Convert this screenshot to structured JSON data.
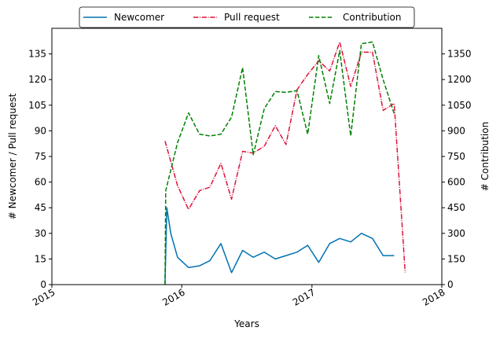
{
  "chart_data": {
    "type": "line",
    "xlabel": "Years",
    "ylabel_left": "# Newcomer / Pull request",
    "ylabel_right": "# Contribution",
    "xlim": [
      "2015-01-01",
      "2018-01-01"
    ],
    "xticks": [
      {
        "date": "2015-01-01",
        "label": "2015"
      },
      {
        "date": "2016-01-01",
        "label": "2016"
      },
      {
        "date": "2017-01-01",
        "label": "2017"
      },
      {
        "date": "2018-01-01",
        "label": "2018"
      }
    ],
    "ylim_left": [
      0,
      150
    ],
    "yticks_left": [
      0,
      15,
      30,
      45,
      60,
      75,
      90,
      105,
      120,
      135
    ],
    "ylim_right": [
      0,
      1500
    ],
    "yticks_right": [
      0,
      150,
      300,
      450,
      600,
      750,
      900,
      1050,
      1200,
      1350
    ],
    "grid": false,
    "legend_position": "top-center",
    "series": [
      {
        "name": "Newcomer",
        "axis": "left",
        "color": "#0072b2",
        "dash": "solid",
        "points": [
          [
            "2015-11-15",
            0
          ],
          [
            "2015-11-20",
            45
          ],
          [
            "2015-12-01",
            30
          ],
          [
            "2015-12-20",
            16
          ],
          [
            "2016-01-20",
            10
          ],
          [
            "2016-02-20",
            11
          ],
          [
            "2016-03-20",
            14
          ],
          [
            "2016-04-20",
            24
          ],
          [
            "2016-05-20",
            7
          ],
          [
            "2016-06-20",
            20
          ],
          [
            "2016-07-20",
            16
          ],
          [
            "2016-08-20",
            19
          ],
          [
            "2016-09-20",
            15
          ],
          [
            "2016-10-20",
            17
          ],
          [
            "2016-11-20",
            19
          ],
          [
            "2016-12-20",
            23
          ],
          [
            "2017-01-20",
            13
          ],
          [
            "2017-02-20",
            24
          ],
          [
            "2017-03-20",
            27
          ],
          [
            "2017-04-20",
            25
          ],
          [
            "2017-05-20",
            30
          ],
          [
            "2017-06-20",
            27
          ],
          [
            "2017-07-20",
            17
          ],
          [
            "2017-08-20",
            17
          ]
        ]
      },
      {
        "name": "Pull request",
        "axis": "left",
        "color": "#dc143c",
        "dash": "dashdot",
        "points": [
          [
            "2015-11-15",
            84
          ],
          [
            "2015-12-20",
            58
          ],
          [
            "2016-01-20",
            44
          ],
          [
            "2016-02-20",
            55
          ],
          [
            "2016-03-20",
            57
          ],
          [
            "2016-04-20",
            71
          ],
          [
            "2016-05-20",
            50
          ],
          [
            "2016-06-20",
            78
          ],
          [
            "2016-07-20",
            77
          ],
          [
            "2016-08-20",
            81
          ],
          [
            "2016-09-20",
            93
          ],
          [
            "2016-10-20",
            82
          ],
          [
            "2016-11-20",
            114
          ],
          [
            "2016-12-20",
            123
          ],
          [
            "2017-01-20",
            131
          ],
          [
            "2017-02-20",
            125
          ],
          [
            "2017-03-20",
            142
          ],
          [
            "2017-04-20",
            116
          ],
          [
            "2017-05-20",
            136
          ],
          [
            "2017-06-20",
            136
          ],
          [
            "2017-07-20",
            102
          ],
          [
            "2017-08-20",
            106
          ],
          [
            "2017-09-20",
            7
          ]
        ]
      },
      {
        "name": "Contribution",
        "axis": "right",
        "color": "#008000",
        "dash": "dashed",
        "points": [
          [
            "2015-11-15",
            0
          ],
          [
            "2015-11-17",
            550
          ],
          [
            "2015-12-20",
            830
          ],
          [
            "2016-01-20",
            1005
          ],
          [
            "2016-02-20",
            880
          ],
          [
            "2016-03-20",
            870
          ],
          [
            "2016-04-20",
            880
          ],
          [
            "2016-05-20",
            980
          ],
          [
            "2016-06-20",
            1270
          ],
          [
            "2016-07-20",
            760
          ],
          [
            "2016-08-20",
            1030
          ],
          [
            "2016-09-20",
            1130
          ],
          [
            "2016-10-20",
            1125
          ],
          [
            "2016-11-20",
            1135
          ],
          [
            "2016-12-20",
            880
          ],
          [
            "2017-01-20",
            1340
          ],
          [
            "2017-02-20",
            1060
          ],
          [
            "2017-03-20",
            1370
          ],
          [
            "2017-04-20",
            870
          ],
          [
            "2017-05-20",
            1410
          ],
          [
            "2017-06-20",
            1420
          ],
          [
            "2017-07-20",
            1200
          ],
          [
            "2017-08-20",
            1000
          ]
        ]
      }
    ]
  }
}
